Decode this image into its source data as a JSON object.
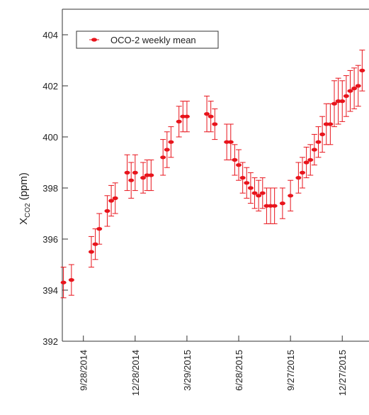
{
  "chart_data": {
    "type": "errorbar-scatter",
    "y_label_parts": [
      "X",
      "CO2",
      "(ppm)"
    ],
    "x": [
      "2014-08-24",
      "2014-09-07",
      "2014-10-12",
      "2014-10-19",
      "2014-10-26",
      "2014-11-09",
      "2014-11-16",
      "2014-11-23",
      "2014-12-14",
      "2014-12-21",
      "2014-12-28",
      "2015-01-11",
      "2015-01-18",
      "2015-01-25",
      "2015-02-15",
      "2015-02-22",
      "2015-03-01",
      "2015-03-15",
      "2015-03-22",
      "2015-03-29",
      "2015-05-03",
      "2015-05-10",
      "2015-05-17",
      "2015-06-07",
      "2015-06-14",
      "2015-06-21",
      "2015-06-28",
      "2015-07-05",
      "2015-07-12",
      "2015-07-19",
      "2015-07-26",
      "2015-08-02",
      "2015-08-09",
      "2015-08-16",
      "2015-08-23",
      "2015-08-30",
      "2015-09-13",
      "2015-09-27",
      "2015-10-11",
      "2015-10-18",
      "2015-10-25",
      "2015-11-01",
      "2015-11-08",
      "2015-11-15",
      "2015-11-22",
      "2015-11-29",
      "2015-12-06",
      "2015-12-13",
      "2015-12-20",
      "2015-12-27",
      "2016-01-03",
      "2016-01-10",
      "2016-01-17",
      "2016-01-24",
      "2016-01-31"
    ],
    "series": [
      {
        "name": "OCO-2 weekly mean",
        "color": "#e8141c",
        "values": [
          394.3,
          394.4,
          395.5,
          395.8,
          396.4,
          397.1,
          397.5,
          397.6,
          398.6,
          398.3,
          398.6,
          398.4,
          398.5,
          398.5,
          399.2,
          399.5,
          399.8,
          400.6,
          400.8,
          400.8,
          400.9,
          400.8,
          400.5,
          399.8,
          399.8,
          399.1,
          398.9,
          398.4,
          398.2,
          398.0,
          397.8,
          397.7,
          397.8,
          397.3,
          397.3,
          397.3,
          397.4,
          397.7,
          398.4,
          398.6,
          399.0,
          399.1,
          399.5,
          399.8,
          400.1,
          400.5,
          400.5,
          401.3,
          401.4,
          401.4,
          401.6,
          401.8,
          401.9,
          402.0,
          402.6
        ],
        "errors": [
          0.6,
          0.6,
          0.6,
          0.6,
          0.6,
          0.6,
          0.6,
          0.6,
          0.7,
          0.7,
          0.7,
          0.6,
          0.6,
          0.6,
          0.7,
          0.7,
          0.6,
          0.6,
          0.6,
          0.6,
          0.7,
          0.6,
          0.6,
          0.7,
          0.7,
          0.6,
          0.6,
          0.6,
          0.6,
          0.6,
          0.6,
          0.6,
          0.6,
          0.7,
          0.7,
          0.7,
          0.6,
          0.6,
          0.6,
          0.6,
          0.6,
          0.6,
          0.6,
          0.6,
          0.7,
          0.8,
          0.8,
          0.9,
          0.9,
          0.8,
          0.8,
          0.8,
          0.8,
          0.8,
          0.8
        ]
      }
    ],
    "xlim": [
      "2014-08-22",
      "2016-02-12"
    ],
    "xticks": [
      {
        "value": "2014-09-28",
        "label": "9/28/2014"
      },
      {
        "value": "2014-12-28",
        "label": "12/28/2014"
      },
      {
        "value": "2015-03-29",
        "label": "3/29/2015"
      },
      {
        "value": "2015-06-28",
        "label": "6/28/2015"
      },
      {
        "value": "2015-09-27",
        "label": "9/27/2015"
      },
      {
        "value": "2015-12-27",
        "label": "12/27/2015"
      }
    ],
    "ylim": [
      392,
      405
    ],
    "yticks": [
      392,
      394,
      396,
      398,
      400,
      402,
      404
    ],
    "legend": "top-left"
  }
}
